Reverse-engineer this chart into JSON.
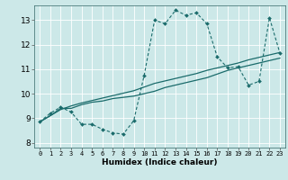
{
  "xlabel": "Humidex (Indice chaleur)",
  "bg_color": "#cce8e8",
  "grid_color": "#ffffff",
  "line_color": "#1a6b6b",
  "xlim": [
    -0.5,
    23.5
  ],
  "ylim": [
    7.8,
    13.6
  ],
  "xticks": [
    0,
    1,
    2,
    3,
    4,
    5,
    6,
    7,
    8,
    9,
    10,
    11,
    12,
    13,
    14,
    15,
    16,
    17,
    18,
    19,
    20,
    21,
    22,
    23
  ],
  "yticks": [
    8,
    9,
    10,
    11,
    12,
    13
  ],
  "curve1_x": [
    0,
    1,
    2,
    3,
    4,
    5,
    6,
    7,
    8,
    9,
    10,
    11,
    12,
    13,
    14,
    15,
    16,
    17,
    18,
    19,
    20,
    21,
    22,
    23
  ],
  "curve1_y": [
    8.85,
    9.2,
    9.45,
    9.25,
    8.75,
    8.75,
    8.55,
    8.4,
    8.35,
    8.9,
    10.75,
    13.0,
    12.85,
    13.4,
    13.2,
    13.3,
    12.85,
    11.5,
    11.05,
    11.1,
    10.35,
    10.5,
    13.1,
    11.65
  ],
  "curve2_x": [
    0,
    1,
    2,
    3,
    4,
    5,
    6,
    7,
    8,
    9,
    10,
    11,
    12,
    13,
    14,
    15,
    16,
    17,
    18,
    19,
    20,
    21,
    22,
    23
  ],
  "curve2_y": [
    8.85,
    9.1,
    9.4,
    9.4,
    9.55,
    9.65,
    9.7,
    9.8,
    9.85,
    9.9,
    10.0,
    10.1,
    10.25,
    10.35,
    10.45,
    10.55,
    10.65,
    10.8,
    10.95,
    11.05,
    11.15,
    11.25,
    11.35,
    11.45
  ],
  "curve3_x": [
    0,
    1,
    2,
    3,
    4,
    5,
    6,
    7,
    8,
    9,
    10,
    11,
    12,
    13,
    14,
    15,
    16,
    17,
    18,
    19,
    20,
    21,
    22,
    23
  ],
  "curve3_y": [
    8.85,
    9.1,
    9.35,
    9.5,
    9.62,
    9.72,
    9.82,
    9.92,
    10.02,
    10.12,
    10.27,
    10.42,
    10.52,
    10.62,
    10.72,
    10.82,
    10.95,
    11.05,
    11.15,
    11.25,
    11.38,
    11.48,
    11.58,
    11.68
  ]
}
